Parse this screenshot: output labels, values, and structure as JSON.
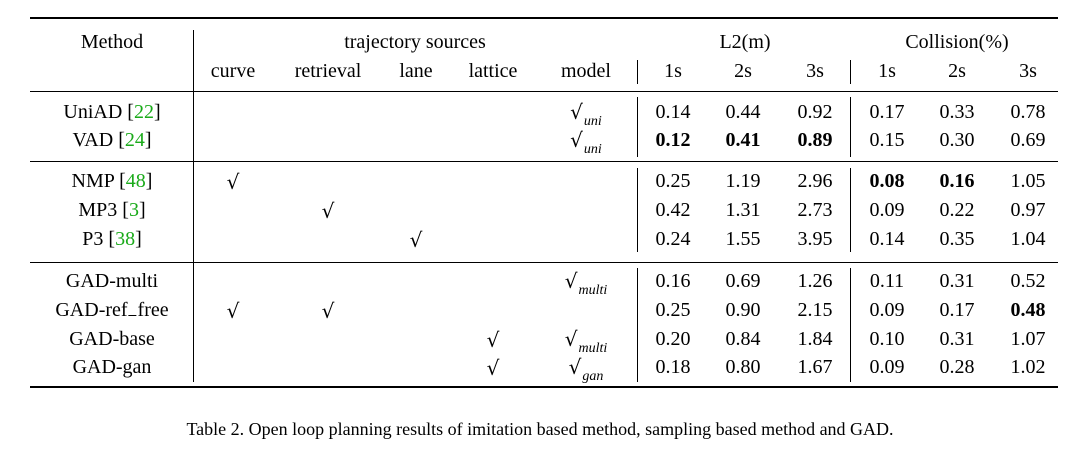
{
  "table": {
    "header_top": {
      "method": "Method",
      "trajectory_sources": "trajectory sources",
      "l2": "L2(m)",
      "collision": "Collision(%)"
    },
    "header_sub": {
      "curve": "curve",
      "retrieval": "retrieval",
      "lane": "lane",
      "lattice": "lattice",
      "model": "model",
      "l2_1s": "1s",
      "l2_2s": "2s",
      "l2_3s": "3s",
      "col_1s": "1s",
      "col_2s": "2s",
      "col_3s": "3s"
    },
    "check_symbol": "√",
    "groups": [
      {
        "rows": [
          {
            "name": "UniAD",
            "ref": "22",
            "curve": false,
            "retrieval": false,
            "lane": false,
            "lattice": false,
            "model": "uni",
            "l2": [
              "0.14",
              "0.44",
              "0.92"
            ],
            "collision": [
              "0.17",
              "0.33",
              "0.78"
            ],
            "bold": []
          },
          {
            "name": "VAD",
            "ref": "24",
            "curve": false,
            "retrieval": false,
            "lane": false,
            "lattice": false,
            "model": "uni",
            "l2": [
              "0.12",
              "0.41",
              "0.89"
            ],
            "collision": [
              "0.15",
              "0.30",
              "0.69"
            ],
            "bold": [
              "l2_0",
              "l2_1",
              "l2_2"
            ]
          }
        ]
      },
      {
        "rows": [
          {
            "name": "NMP",
            "ref": "48",
            "curve": true,
            "retrieval": false,
            "lane": false,
            "lattice": false,
            "model": "",
            "l2": [
              "0.25",
              "1.19",
              "2.96"
            ],
            "collision": [
              "0.08",
              "0.16",
              "1.05"
            ],
            "bold": [
              "col_0",
              "col_1"
            ]
          },
          {
            "name": "MP3",
            "ref": "3",
            "curve": false,
            "retrieval": true,
            "lane": false,
            "lattice": false,
            "model": "",
            "l2": [
              "0.42",
              "1.31",
              "2.73"
            ],
            "collision": [
              "0.09",
              "0.22",
              "0.97"
            ],
            "bold": []
          },
          {
            "name": "P3",
            "ref": "38",
            "curve": false,
            "retrieval": false,
            "lane": true,
            "lattice": false,
            "model": "",
            "l2": [
              "0.24",
              "1.55",
              "3.95"
            ],
            "collision": [
              "0.14",
              "0.35",
              "1.04"
            ],
            "bold": []
          }
        ]
      },
      {
        "rows": [
          {
            "name": "GAD-multi",
            "ref": "",
            "curve": false,
            "retrieval": false,
            "lane": false,
            "lattice": false,
            "model": "multi",
            "l2": [
              "0.16",
              "0.69",
              "1.26"
            ],
            "collision": [
              "0.11",
              "0.31",
              "0.52"
            ],
            "bold": []
          },
          {
            "name": "GAD-ref_free",
            "ref": "",
            "curve": true,
            "retrieval": true,
            "lane": false,
            "lattice": false,
            "model": "",
            "l2": [
              "0.25",
              "0.90",
              "2.15"
            ],
            "collision": [
              "0.09",
              "0.17",
              "0.48"
            ],
            "bold": [
              "col_2"
            ]
          },
          {
            "name": "GAD-base",
            "ref": "",
            "curve": false,
            "retrieval": false,
            "lane": false,
            "lattice": true,
            "model": "multi",
            "l2": [
              "0.20",
              "0.84",
              "1.84"
            ],
            "collision": [
              "0.10",
              "0.31",
              "1.07"
            ],
            "bold": []
          },
          {
            "name": "GAD-gan",
            "ref": "",
            "curve": false,
            "retrieval": false,
            "lane": false,
            "lattice": true,
            "model": "gan",
            "l2": [
              "0.18",
              "0.80",
              "1.67"
            ],
            "collision": [
              "0.09",
              "0.28",
              "1.02"
            ],
            "bold": []
          }
        ]
      }
    ]
  },
  "caption": "Table 2. Open loop planning results of imitation based method, sampling based method and GAD."
}
